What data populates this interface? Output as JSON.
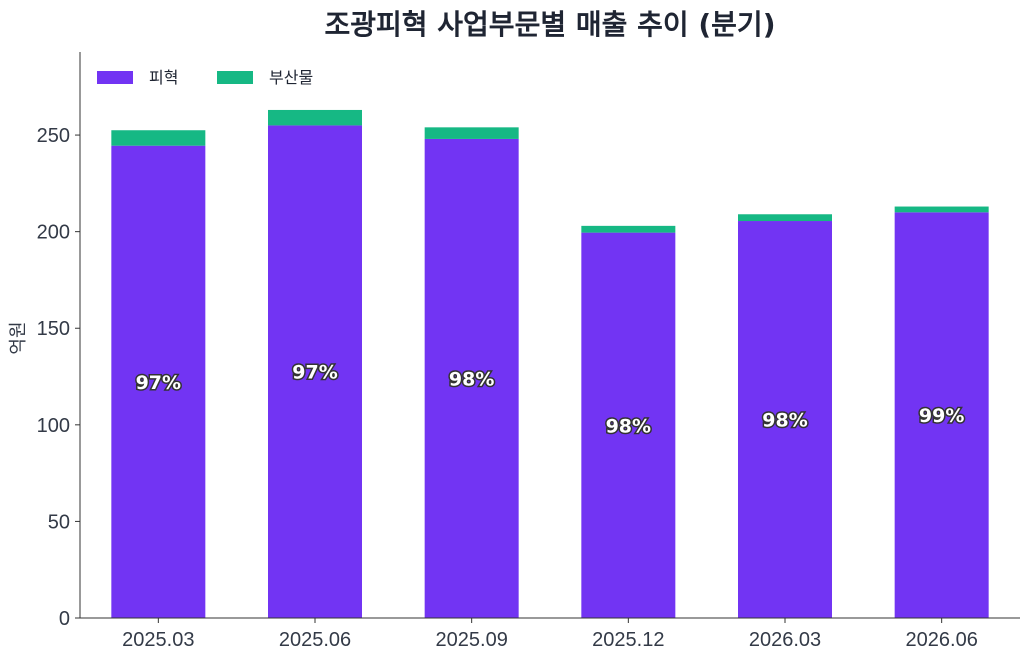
{
  "chart_data": {
    "type": "bar",
    "stacked": true,
    "title": "조광피혁 사업부문별 매출 추이 (분기)",
    "xlabel": "",
    "ylabel": "억원",
    "categories": [
      "2025.03",
      "2025.06",
      "2025.09",
      "2025.12",
      "2026.03",
      "2026.06"
    ],
    "series": [
      {
        "name": "피혁",
        "color": "#7234f3",
        "values": [
          244.5,
          255,
          248,
          199.5,
          205.5,
          210
        ]
      },
      {
        "name": "부산물",
        "color": "#16b884",
        "values": [
          8,
          8,
          6,
          3.5,
          3.5,
          3
        ]
      }
    ],
    "share_labels": [
      "97%",
      "97%",
      "98%",
      "98%",
      "98%",
      "99%"
    ],
    "ylim": [
      0,
      293
    ],
    "yticks": [
      0,
      50,
      100,
      150,
      200,
      250
    ],
    "legend_position": "top-left",
    "grid": false
  }
}
